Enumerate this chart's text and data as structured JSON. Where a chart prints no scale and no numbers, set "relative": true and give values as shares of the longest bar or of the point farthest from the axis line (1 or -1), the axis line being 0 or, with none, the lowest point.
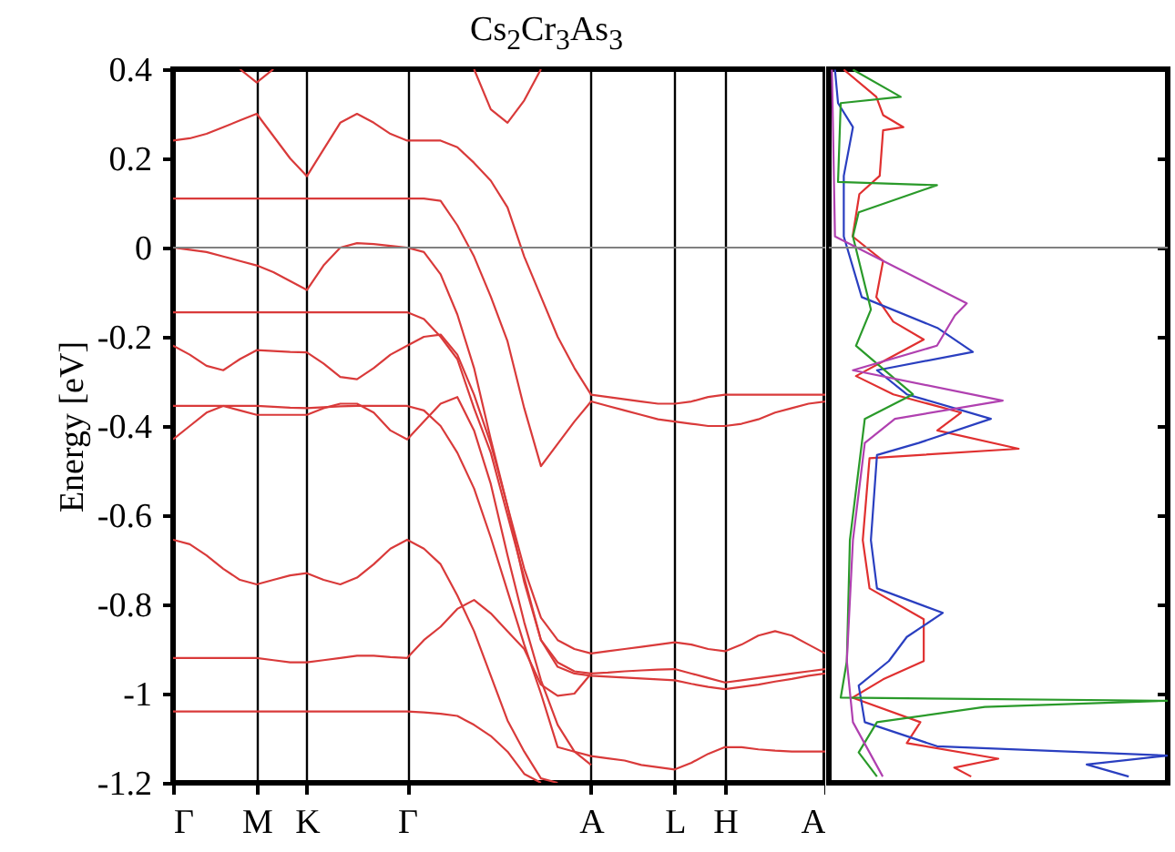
{
  "chart_data": [
    {
      "type": "line",
      "title": "Cs$_{2}$Cr$_{3}$As$_{3}$",
      "ylabel": "Energy [eV]",
      "categories": [
        "Γ",
        null,
        null,
        null,
        null,
        "M",
        null,
        null,
        "K",
        null,
        null,
        null,
        null,
        null,
        "Γ",
        null,
        null,
        null,
        null,
        null,
        null,
        null,
        null,
        null,
        null,
        "A",
        null,
        null,
        null,
        null,
        "L",
        null,
        null,
        "H",
        null,
        null,
        null,
        null,
        null,
        "A"
      ],
      "ylim": [
        -1.2,
        0.4
      ],
      "yticks": [
        -1.2,
        -1,
        -0.8,
        -0.6,
        -0.4,
        -0.2,
        0,
        0.2,
        0.4
      ],
      "grid": "x",
      "ref_lines": [
        {
          "axis": "y",
          "value": 0,
          "color": "#808080"
        }
      ],
      "series": [
        {
          "color": "#d93a3a",
          "values": [
            0.24,
            0.245,
            0.255,
            0.27,
            0.285,
            0.3,
            0.25,
            0.2,
            0.16,
            0.22,
            0.28,
            0.3,
            0.28,
            0.255,
            0.24,
            0.24,
            0.24,
            0.225,
            0.19,
            0.15,
            0.09,
            -0.02,
            -0.11,
            -0.2,
            -0.27,
            -0.33,
            -0.335,
            -0.34,
            -0.345,
            -0.35,
            -0.35,
            -0.345,
            -0.335,
            -0.33,
            -0.33,
            -0.33,
            -0.33,
            -0.33,
            -0.33,
            -0.33
          ]
        },
        {
          "color": "#d93a3a",
          "values": [
            0.11,
            0.11,
            0.11,
            0.11,
            0.11,
            0.11,
            0.11,
            0.11,
            0.11,
            0.11,
            0.11,
            0.11,
            0.11,
            0.11,
            0.11,
            0.11,
            0.105,
            0.05,
            -0.02,
            -0.11,
            -0.21,
            -0.36,
            -0.49,
            -0.44,
            -0.39,
            -0.345,
            -0.355,
            -0.365,
            -0.375,
            -0.385,
            -0.39,
            -0.395,
            -0.4,
            -0.4,
            -0.395,
            -0.385,
            -0.37,
            -0.36,
            -0.35,
            -0.345
          ]
        },
        {
          "color": "#d93a3a",
          "values": [
            0,
            -0.005,
            -0.01,
            -0.02,
            -0.03,
            -0.04,
            -0.055,
            -0.075,
            -0.095,
            -0.04,
            0,
            0.01,
            0.008,
            0.004,
            0,
            -0.01,
            -0.06,
            -0.15,
            -0.27,
            -0.43,
            -0.58,
            -0.72,
            -0.83,
            -0.88,
            -0.9,
            -0.91,
            -0.905,
            -0.9,
            -0.895,
            -0.89,
            -0.885,
            -0.89,
            -0.9,
            -0.905,
            -0.89,
            -0.87,
            -0.86,
            -0.87,
            -0.89,
            -0.91
          ]
        },
        {
          "color": "#d93a3a",
          "values": [
            -0.145,
            -0.145,
            -0.145,
            -0.145,
            -0.145,
            -0.145,
            -0.145,
            -0.145,
            -0.145,
            -0.145,
            -0.145,
            -0.145,
            -0.145,
            -0.145,
            -0.145,
            -0.16,
            -0.2,
            -0.25,
            -0.36,
            -0.46,
            -0.6,
            -0.74,
            -0.88,
            -0.93,
            -0.95,
            -0.955,
            -0.953,
            -0.95,
            -0.948,
            -0.946,
            -0.945,
            -0.955,
            -0.965,
            -0.975,
            -0.97,
            -0.965,
            -0.96,
            -0.955,
            -0.95,
            -0.945
          ]
        },
        {
          "color": "#d93a3a",
          "values": [
            -0.22,
            -0.24,
            -0.265,
            -0.275,
            -0.25,
            -0.23,
            -0.232,
            -0.234,
            -0.235,
            -0.26,
            -0.29,
            -0.295,
            -0.27,
            -0.24,
            -0.22,
            -0.2,
            -0.195,
            -0.24,
            -0.33,
            -0.44,
            -0.58,
            -0.75,
            -0.88,
            -0.94,
            -0.955,
            -0.96,
            -0.962,
            -0.964,
            -0.966,
            -0.968,
            -0.97,
            -0.978,
            -0.985,
            -0.99,
            -0.985,
            -0.98,
            -0.973,
            -0.967,
            -0.96,
            -0.955
          ]
        },
        {
          "color": "#d93a3a",
          "values": [
            -0.355,
            -0.355,
            -0.355,
            -0.355,
            -0.355,
            -0.355,
            -0.357,
            -0.359,
            -0.36,
            -0.358,
            -0.356,
            -0.355,
            -0.355,
            -0.355,
            -0.355,
            -0.365,
            -0.4,
            -0.46,
            -0.54,
            -0.65,
            -0.77,
            -0.89,
            -1.0,
            -1.12,
            -1.13,
            -1.14,
            -1.145,
            -1.15,
            -1.16,
            -1.165,
            -1.17,
            -1.155,
            -1.135,
            -1.12,
            -1.12,
            -1.125,
            -1.128,
            -1.13,
            -1.13,
            -1.13
          ]
        },
        {
          "color": "#d93a3a",
          "values": [
            -0.43,
            -0.4,
            -0.37,
            -0.355,
            -0.365,
            -0.375,
            -0.375,
            -0.375,
            -0.375,
            -0.36,
            -0.35,
            -0.35,
            -0.37,
            -0.41,
            -0.43,
            -0.39,
            -0.35,
            -0.335,
            -0.41,
            -0.53,
            -0.69,
            -0.84,
            -0.97,
            -1.07,
            -1.13,
            -1.16,
            null,
            null,
            null,
            null,
            null,
            null,
            null,
            null,
            null,
            null,
            null,
            null,
            null,
            null
          ]
        },
        {
          "color": "#d93a3a",
          "values": [
            -0.655,
            -0.665,
            -0.69,
            -0.72,
            -0.745,
            -0.755,
            -0.745,
            -0.735,
            -0.73,
            -0.745,
            -0.755,
            -0.74,
            -0.71,
            -0.675,
            -0.655,
            -0.675,
            -0.71,
            -0.78,
            -0.86,
            -0.96,
            -1.06,
            -1.13,
            -1.19,
            -1.2,
            null,
            null,
            null,
            null,
            null,
            null,
            null,
            null,
            null,
            null,
            null,
            null,
            null,
            null,
            null,
            null
          ]
        },
        {
          "color": "#d93a3a",
          "values": [
            -0.92,
            -0.92,
            -0.92,
            -0.92,
            -0.92,
            -0.92,
            -0.925,
            -0.93,
            -0.93,
            -0.925,
            -0.92,
            -0.915,
            -0.915,
            -0.918,
            -0.92,
            -0.88,
            -0.85,
            -0.81,
            -0.79,
            -0.82,
            -0.86,
            -0.9,
            -0.98,
            -1.005,
            -1.0,
            -0.955,
            null,
            null,
            null,
            null,
            null,
            null,
            null,
            null,
            null,
            null,
            null,
            null,
            null,
            null
          ]
        },
        {
          "color": "#d93a3a",
          "values": [
            -1.04,
            -1.04,
            -1.04,
            -1.04,
            -1.04,
            -1.04,
            -1.04,
            -1.04,
            -1.04,
            -1.04,
            -1.04,
            -1.04,
            -1.04,
            -1.04,
            -1.04,
            -1.042,
            -1.045,
            -1.05,
            -1.07,
            -1.095,
            -1.13,
            -1.18,
            -1.2,
            null,
            null,
            null,
            null,
            null,
            null,
            null,
            null,
            null,
            null,
            null,
            null,
            null,
            null,
            null,
            null,
            null
          ]
        },
        {
          "color": "#d93a3a",
          "values": [
            null,
            null,
            null,
            null,
            0.4,
            0.37,
            0.4,
            null,
            null,
            null,
            null,
            null,
            null,
            null,
            null,
            null,
            null,
            null,
            null,
            null,
            null,
            null,
            null,
            null,
            null,
            null,
            null,
            null,
            null,
            null,
            null,
            null,
            null,
            null,
            null,
            null,
            null,
            null,
            null,
            null
          ]
        },
        {
          "color": "#d93a3a",
          "values": [
            null,
            null,
            null,
            null,
            null,
            null,
            null,
            null,
            null,
            null,
            null,
            null,
            null,
            null,
            null,
            null,
            null,
            null,
            0.4,
            0.31,
            0.28,
            0.33,
            0.4,
            null,
            null,
            null,
            null,
            null,
            null,
            null,
            null,
            null,
            null,
            null,
            null,
            null,
            null,
            null,
            null,
            null
          ]
        }
      ]
    },
    {
      "type": "line",
      "orientation": "horizontal",
      "relative": true,
      "ylim": [
        -1.2,
        0.4
      ],
      "yticks": [
        -1.2,
        -1,
        -0.8,
        -0.6,
        -0.4,
        -0.2,
        0,
        0.2,
        0.4
      ],
      "tick_labels": false,
      "ref_lines": [
        {
          "axis": "y",
          "value": 0,
          "color": "#808080"
        }
      ],
      "series": [
        {
          "color": "#e03030",
          "x": [
            0.399,
            0.338,
            0.297,
            0.27,
            0.263,
            0.161,
            0.12,
            0.025,
            -0.03,
            -0.111,
            -0.166,
            -0.206,
            -0.247,
            -0.288,
            -0.329,
            -0.37,
            -0.41,
            -0.451,
            -0.472,
            -0.656,
            -0.764,
            -0.833,
            -0.927,
            -0.968,
            -1.009,
            -1.064,
            -1.111,
            -1.146,
            -1.166,
            -1.186
          ],
          "values": [
            0.044,
            0.14,
            0.16,
            0.22,
            0.16,
            0.15,
            0.09,
            0.07,
            0.16,
            0.14,
            0.19,
            0.28,
            0.18,
            0.08,
            0.19,
            0.39,
            0.32,
            0.56,
            0.12,
            0.1,
            0.12,
            0.28,
            0.28,
            0.16,
            0.07,
            0.27,
            0.23,
            0.5,
            0.37,
            0.42
          ]
        },
        {
          "color": "#2a3fc0",
          "x": [
            0.399,
            0.324,
            0.27,
            0.161,
            0.025,
            -0.111,
            -0.18,
            -0.234,
            -0.275,
            -0.329,
            -0.384,
            -0.438,
            -0.465,
            -0.656,
            -0.764,
            -0.819,
            -0.873,
            -0.927,
            -0.982,
            -1.064,
            -1.118,
            -1.139,
            -1.159,
            -1.186
          ],
          "values": [
            0.018,
            0.027,
            0.071,
            0.044,
            0.044,
            0.097,
            0.32,
            0.425,
            0.142,
            0.23,
            0.478,
            0.265,
            0.142,
            0.124,
            0.142,
            0.336,
            0.23,
            0.177,
            0.088,
            0.106,
            0.319,
            1,
            0.761,
            0.885
          ]
        },
        {
          "color": "#2a9a2a",
          "x": [
            0.399,
            0.338,
            0.324,
            0.147,
            0.14,
            0.079,
            0.025,
            -0.139,
            -0.22,
            -0.329,
            -0.384,
            -0.656,
            -0.927,
            -1.009,
            -1.016,
            -1.03,
            -1.064,
            -1.132,
            -1.186
          ],
          "values": [
            0.071,
            0.212,
            0.035,
            0.027,
            0.319,
            0.088,
            0.071,
            0.124,
            0.08,
            0.248,
            0.106,
            0.062,
            0.053,
            0.035,
            1,
            0.46,
            0.142,
            0.088,
            0.142
          ]
        },
        {
          "color": "#b040b0",
          "x": [
            0.399,
            0.025,
            -0.125,
            -0.152,
            -0.22,
            -0.275,
            -0.343,
            -0.384,
            -0.438,
            -0.656,
            -0.927,
            -1.064,
            -1.186
          ],
          "values": [
            0.009,
            0.018,
            0.407,
            0.372,
            0.319,
            0.071,
            0.513,
            0.195,
            0.106,
            0.071,
            0.053,
            0.071,
            0.159
          ]
        }
      ]
    }
  ]
}
